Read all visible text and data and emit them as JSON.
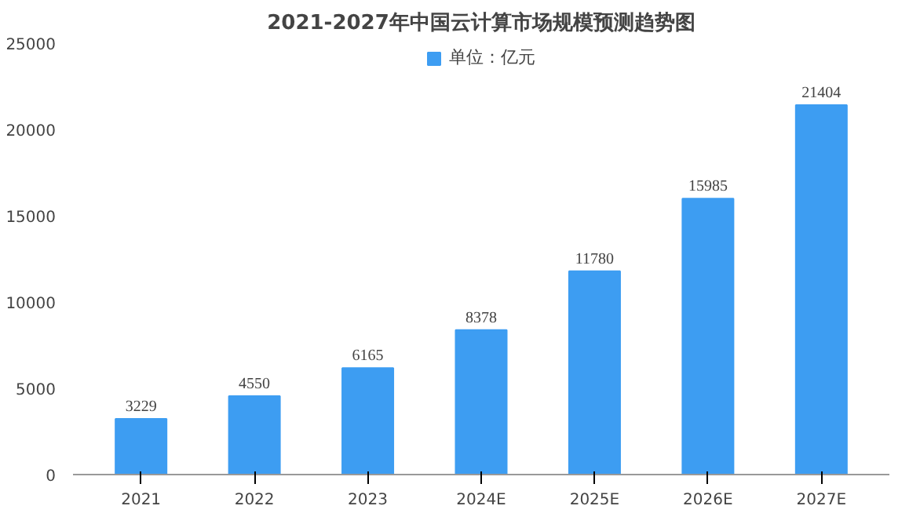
{
  "chart_data": {
    "type": "bar",
    "title": "2021-2027年中国云计算市场规模预测趋势图",
    "categories": [
      "2021",
      "2022",
      "2023",
      "2024E",
      "2025E",
      "2026E",
      "2027E"
    ],
    "series": [
      {
        "name": "单位：亿元",
        "color": "#3d9df2",
        "values": [
          3229,
          4550,
          6165,
          8378,
          11780,
          15985,
          21404
        ]
      }
    ],
    "ylim": [
      0,
      25000
    ],
    "yticks": [
      0,
      5000,
      10000,
      15000,
      20000,
      25000
    ],
    "data_labels": true,
    "legend": "top",
    "grid": false
  }
}
